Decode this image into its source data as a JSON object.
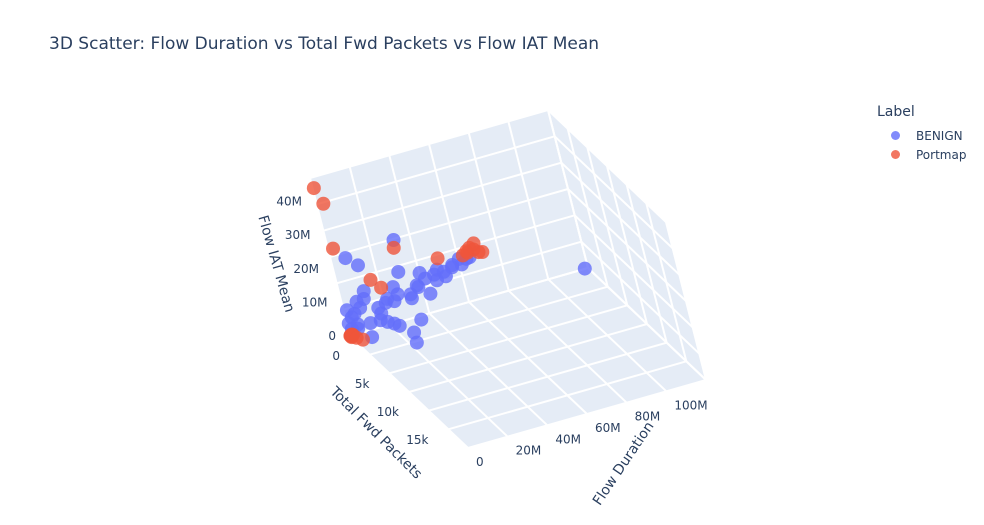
{
  "chart_data": {
    "type": "scatter",
    "dimensions": 3,
    "title": "3D Scatter: Flow Duration vs Total Fwd Packets vs Flow IAT Mean",
    "axes": {
      "x": {
        "label": "Flow Duration",
        "ticks": [
          "0",
          "20M",
          "40M",
          "60M",
          "80M",
          "100M"
        ],
        "range": [
          0,
          120000000
        ]
      },
      "y": {
        "label": "Total Fwd Packets",
        "ticks": [
          "0",
          "5k",
          "10k",
          "15k"
        ],
        "range": [
          0,
          20000
        ]
      },
      "z": {
        "label": "Flow IAT Mean",
        "ticks": [
          "0",
          "10M",
          "20M",
          "30M",
          "40M"
        ],
        "range": [
          0,
          47000000
        ]
      }
    },
    "legend": {
      "title": "Label",
      "placement": "top-right"
    },
    "series": [
      {
        "name": "BENIGN",
        "color": "#636efa",
        "points": [
          [
            118000000,
            200,
            500000
          ],
          [
            1000000,
            300,
            8000000
          ],
          [
            2000000,
            500,
            6000000
          ],
          [
            500000,
            200,
            4000000
          ],
          [
            3000000,
            800,
            3000000
          ],
          [
            1500000,
            100,
            2000000
          ],
          [
            800000,
            400,
            1000000
          ],
          [
            2500000,
            1200,
            5000000
          ],
          [
            4000000,
            1500,
            12000000
          ],
          [
            3500000,
            600,
            7000000
          ],
          [
            6000000,
            1000,
            9000000
          ],
          [
            7000000,
            2000,
            6000000
          ],
          [
            5000000,
            2500,
            3000000
          ],
          [
            8000000,
            1800,
            15000000
          ],
          [
            9000000,
            900,
            11000000
          ],
          [
            10000000,
            3000,
            8000000
          ],
          [
            12000000,
            2200,
            10000000
          ],
          [
            14000000,
            1600,
            7000000
          ],
          [
            16000000,
            2800,
            13000000
          ],
          [
            18000000,
            1300,
            9000000
          ],
          [
            20000000,
            2400,
            11000000
          ],
          [
            22000000,
            1900,
            14000000
          ],
          [
            25000000,
            1100,
            10000000
          ],
          [
            28000000,
            2600,
            12000000
          ],
          [
            30000000,
            1700,
            9000000
          ],
          [
            33000000,
            2100,
            13000000
          ],
          [
            35000000,
            1400,
            11000000
          ],
          [
            38000000,
            2300,
            10000000
          ],
          [
            40000000,
            1000,
            12000000
          ],
          [
            43000000,
            1800,
            14000000
          ],
          [
            45000000,
            1200,
            11000000
          ],
          [
            48000000,
            2000,
            13000000
          ],
          [
            50000000,
            800,
            12000000
          ],
          [
            53000000,
            1500,
            14000000
          ],
          [
            55000000,
            700,
            13000000
          ],
          [
            58000000,
            1100,
            15000000
          ],
          [
            60000000,
            500,
            12000000
          ],
          [
            62000000,
            900,
            14000000
          ],
          [
            65000000,
            300,
            13000000
          ],
          [
            11000000,
            4000,
            9000000
          ],
          [
            15000000,
            3500,
            7000000
          ],
          [
            20000000,
            5000,
            6000000
          ],
          [
            26000000,
            4500,
            8000000
          ],
          [
            18000000,
            6000,
            5000000
          ],
          [
            13000000,
            5500,
            10000000
          ],
          [
            24000000,
            3000,
            20000000
          ],
          [
            36000000,
            2000,
            16000000
          ],
          [
            42000000,
            3200,
            18000000
          ],
          [
            9000000,
            1500,
            22000000
          ],
          [
            5000000,
            1000,
            24000000
          ],
          [
            30000000,
            900,
            25000000
          ]
        ]
      },
      {
        "name": "Portmap",
        "color": "#ef553b",
        "points": [
          [
            500000,
            50,
            44000000
          ],
          [
            3000000,
            100,
            39000000
          ],
          [
            2000000,
            200,
            26000000
          ],
          [
            10000000,
            3000,
            20000000
          ],
          [
            13000000,
            3500,
            18000000
          ],
          [
            30000000,
            500,
            22000000
          ],
          [
            50000000,
            200,
            15000000
          ],
          [
            65000000,
            100,
            14000000
          ],
          [
            68000000,
            150,
            14500000
          ],
          [
            70000000,
            200,
            13500000
          ],
          [
            66000000,
            250,
            15500000
          ],
          [
            72000000,
            100,
            13000000
          ],
          [
            62000000,
            300,
            14000000
          ],
          [
            64000000,
            350,
            15000000
          ],
          [
            69000000,
            50,
            16000000
          ],
          [
            100000,
            50,
            100000
          ],
          [
            200000,
            100,
            300000
          ],
          [
            400000,
            80,
            200000
          ],
          [
            300000,
            150,
            150000
          ],
          [
            600000,
            200,
            250000
          ],
          [
            800000,
            120,
            100000
          ],
          [
            900000,
            60,
            400000
          ],
          [
            150000,
            250,
            50000
          ],
          [
            1200000,
            100,
            300000
          ],
          [
            2500000,
            1500,
            1000000
          ],
          [
            1000000,
            900,
            800000
          ]
        ]
      }
    ]
  }
}
